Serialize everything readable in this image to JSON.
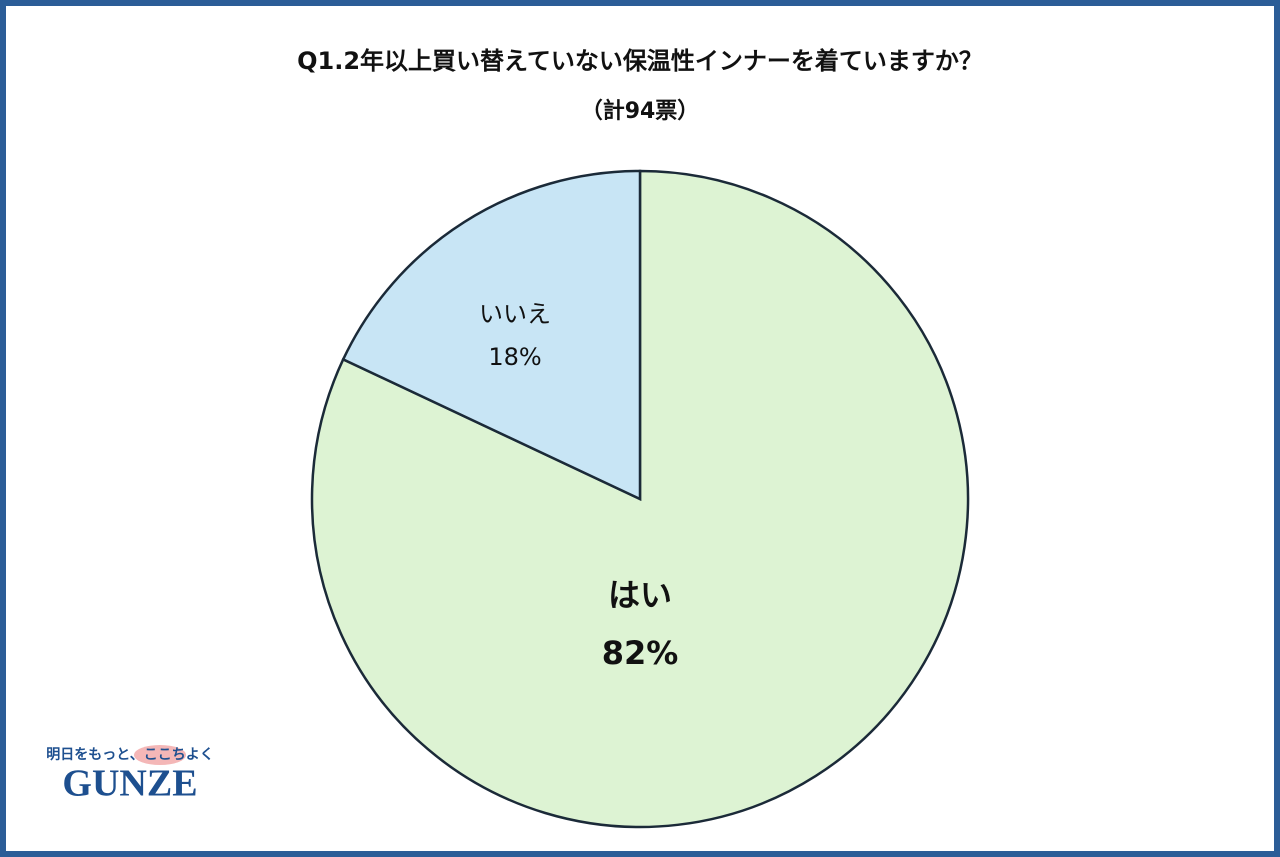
{
  "chart_data": {
    "type": "pie",
    "title": "Q1.2年以上買い替えていない保温性インナーを着ていますか？",
    "subtitle": "（計94票）",
    "categories": [
      "はい",
      "いいえ"
    ],
    "values": [
      82,
      18
    ],
    "value_labels": [
      "82%",
      "18%"
    ],
    "colors": [
      "#ddf3d3",
      "#c8e5f5"
    ]
  },
  "logo": {
    "tagline": "明日をもっと、ここちよく",
    "name": "GUNZE"
  }
}
